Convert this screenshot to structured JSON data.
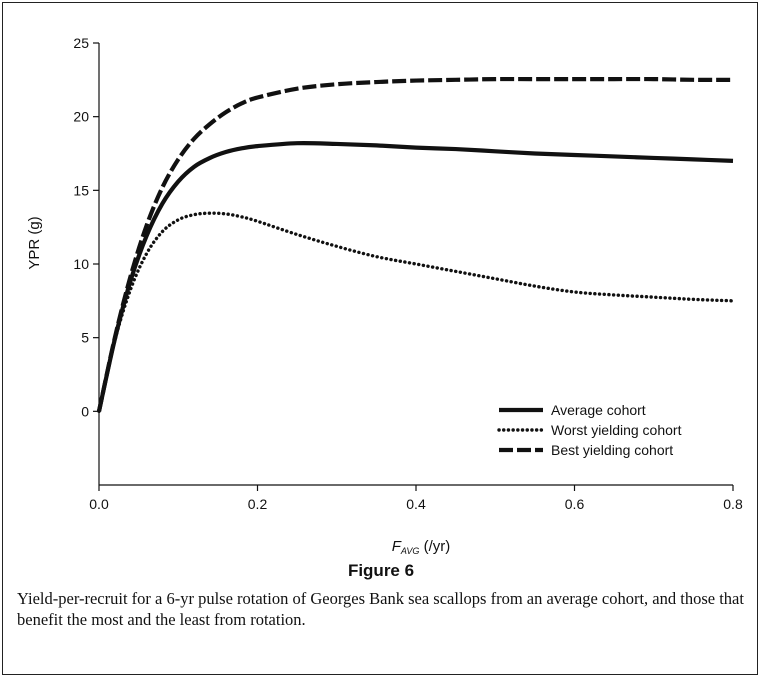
{
  "figure": {
    "title": "Figure 6",
    "caption": "Yield-per-recruit for a 6-yr pulse rotation of Georges Bank sea scallops from an average cohort, and those that benefit the most and the least from rotation."
  },
  "chart_data": {
    "type": "line",
    "xlabel_main": "F",
    "xlabel_sub": "AVG",
    "xlabel_unit": " (/yr)",
    "ylabel": "YPR (g)",
    "xlim": [
      0,
      0.8
    ],
    "ylim": [
      -5,
      25
    ],
    "xticks": [
      "0.0",
      "0.2",
      "0.4",
      "0.6",
      "0.8"
    ],
    "yticks": [
      "0",
      "5",
      "10",
      "15",
      "20",
      "25"
    ],
    "grid": false,
    "legend_position": "bottom-right",
    "x": [
      0,
      0.02,
      0.04,
      0.06,
      0.08,
      0.1,
      0.12,
      0.14,
      0.16,
      0.18,
      0.2,
      0.25,
      0.3,
      0.35,
      0.4,
      0.45,
      0.5,
      0.55,
      0.6,
      0.65,
      0.7,
      0.75,
      0.8
    ],
    "series": [
      {
        "name": "Average cohort",
        "style": "solid",
        "color": "#111111",
        "values": [
          0,
          4.9,
          8.9,
          11.9,
          14.1,
          15.6,
          16.6,
          17.2,
          17.6,
          17.85,
          18.0,
          18.2,
          18.15,
          18.05,
          17.9,
          17.8,
          17.65,
          17.5,
          17.4,
          17.3,
          17.2,
          17.1,
          17.0
        ]
      },
      {
        "name": "Worst yielding cohort",
        "style": "dotted",
        "color": "#111111",
        "values": [
          0,
          4.8,
          8.3,
          10.7,
          12.2,
          13.0,
          13.35,
          13.45,
          13.4,
          13.2,
          12.9,
          12.0,
          11.2,
          10.5,
          10.0,
          9.5,
          9.0,
          8.5,
          8.1,
          7.9,
          7.75,
          7.6,
          7.5
        ]
      },
      {
        "name": "Best yielding cohort",
        "style": "dashed",
        "color": "#111111",
        "values": [
          0,
          5.0,
          9.2,
          12.6,
          15.2,
          17.1,
          18.5,
          19.5,
          20.3,
          20.9,
          21.3,
          21.9,
          22.2,
          22.35,
          22.45,
          22.5,
          22.55,
          22.55,
          22.55,
          22.55,
          22.55,
          22.5,
          22.5
        ]
      }
    ]
  }
}
